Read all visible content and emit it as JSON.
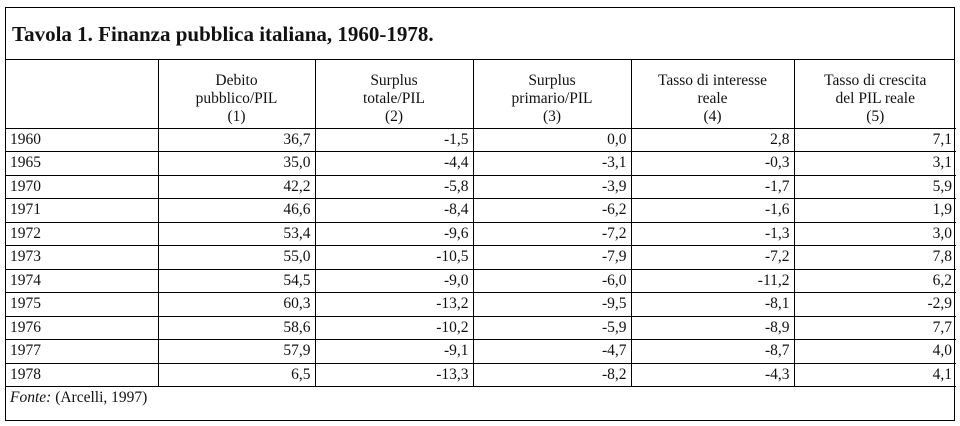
{
  "title": "Tavola 1. Finanza pubblica italiana, 1960-1978.",
  "columns": [
    {
      "lines": [
        "Debito",
        "pubblico/PIL",
        "(1)"
      ]
    },
    {
      "lines": [
        "Surplus",
        "totale/PIL",
        "(2)"
      ]
    },
    {
      "lines": [
        "Surplus",
        "primario/PIL",
        "(3)"
      ]
    },
    {
      "lines": [
        "Tasso di interesse",
        "reale",
        "(4)"
      ]
    },
    {
      "lines": [
        "Tasso di crescita",
        "del PIL reale",
        "(5)"
      ]
    }
  ],
  "rows": [
    {
      "year": "1960",
      "values": [
        "36,7",
        "-1,5",
        "0,0",
        "2,8",
        "7,1"
      ]
    },
    {
      "year": "1965",
      "values": [
        "35,0",
        "-4,4",
        "-3,1",
        "-0,3",
        "3,1"
      ]
    },
    {
      "year": "1970",
      "values": [
        "42,2",
        "-5,8",
        "-3,9",
        "-1,7",
        "5,9"
      ]
    },
    {
      "year": "1971",
      "values": [
        "46,6",
        "-8,4",
        "-6,2",
        "-1,6",
        "1,9"
      ]
    },
    {
      "year": "1972",
      "values": [
        "53,4",
        "-9,6",
        "-7,2",
        "-1,3",
        "3,0"
      ]
    },
    {
      "year": "1973",
      "values": [
        "55,0",
        "-10,5",
        "-7,9",
        "-7,2",
        "7,8"
      ]
    },
    {
      "year": "1974",
      "values": [
        "54,5",
        "-9,0",
        "-6,0",
        "-11,2",
        "6,2"
      ]
    },
    {
      "year": "1975",
      "values": [
        "60,3",
        "-13,2",
        "-9,5",
        "-8,1",
        "-2,9"
      ]
    },
    {
      "year": "1976",
      "values": [
        "58,6",
        "-10,2",
        "-5,9",
        "-8,9",
        "7,7"
      ]
    },
    {
      "year": "1977",
      "values": [
        "57,9",
        "-9,1",
        "-4,7",
        "-8,7",
        "4,0"
      ]
    },
    {
      "year": "1978",
      "values": [
        "6,5",
        "-13,3",
        "-8,2",
        "-4,3",
        "4,1"
      ]
    }
  ],
  "footer": {
    "label": "Fonte:",
    "text": " (Arcelli, 1997)"
  }
}
